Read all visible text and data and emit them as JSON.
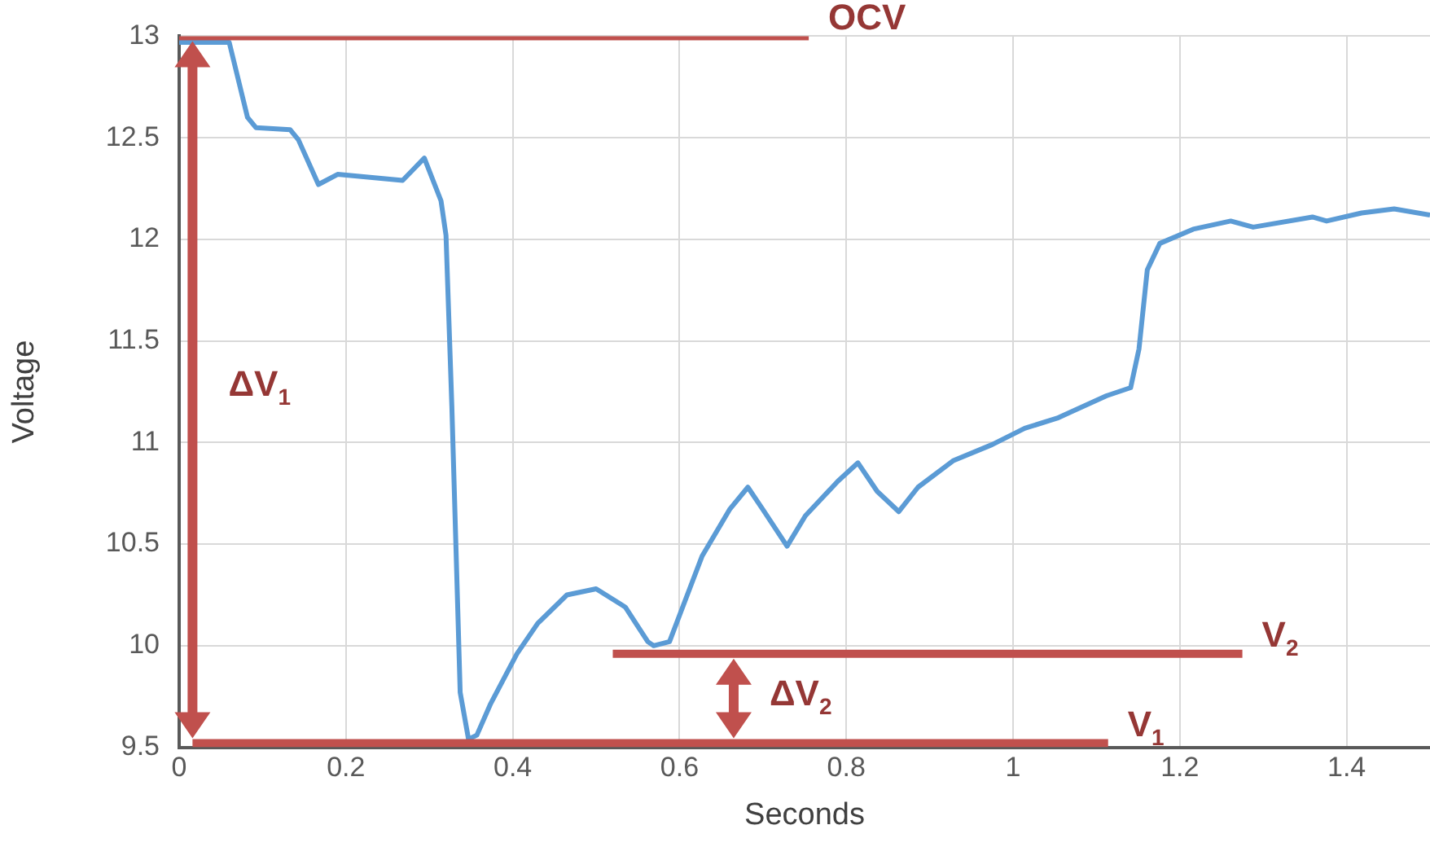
{
  "chart_data": {
    "type": "line",
    "xlabel": "Seconds",
    "ylabel": "Voltage",
    "x": [
      0,
      0.06,
      0.082,
      0.092,
      0.133,
      0.143,
      0.167,
      0.19,
      0.268,
      0.294,
      0.314,
      0.32,
      0.327,
      0.337,
      0.347,
      0.357,
      0.373,
      0.405,
      0.43,
      0.465,
      0.5,
      0.535,
      0.562,
      0.569,
      0.588,
      0.614,
      0.627,
      0.66,
      0.682,
      0.7,
      0.729,
      0.751,
      0.79,
      0.814,
      0.837,
      0.863,
      0.886,
      0.928,
      0.975,
      1.014,
      1.053,
      1.112,
      1.141,
      1.151,
      1.161,
      1.176,
      1.216,
      1.261,
      1.288,
      1.359,
      1.376,
      1.418,
      1.457,
      1.5
    ],
    "series": [
      {
        "color": "#5b9bd5",
        "values": [
          12.97,
          12.97,
          12.6,
          12.55,
          12.54,
          12.49,
          12.27,
          12.32,
          12.29,
          12.4,
          12.19,
          12.02,
          11.18,
          9.77,
          9.54,
          9.56,
          9.71,
          9.96,
          10.11,
          10.25,
          10.28,
          10.19,
          10.02,
          10.0,
          10.02,
          10.3,
          10.44,
          10.67,
          10.78,
          10.67,
          10.49,
          10.64,
          10.81,
          10.9,
          10.76,
          10.66,
          10.78,
          10.91,
          10.99,
          11.07,
          11.12,
          11.23,
          11.27,
          11.46,
          11.85,
          11.98,
          12.05,
          12.09,
          12.06,
          12.11,
          12.09,
          12.13,
          12.15,
          12.12
        ]
      },
      {
        "name": "OCV",
        "color": "#c0504d",
        "x": [
          0,
          0.755
        ],
        "values": [
          13,
          13
        ]
      },
      {
        "name": "V$_{2}$",
        "color": "#c0504d",
        "x": [
          0.52,
          1.275
        ],
        "values": [
          9.96,
          9.96
        ]
      },
      {
        "name": "V$_{1}$",
        "color": "#c0504d",
        "x": [
          0.016,
          1.114
        ],
        "values": [
          9.52,
          9.52
        ]
      }
    ],
    "annotations": [
      "ΔV$_{1}$",
      {
        "text": "ΔV$_{2}$",
        "x": 0.665,
        "y": 9.52
      }
    ],
    "xlim": [
      0,
      1.5
    ],
    "xticks": [
      0,
      0.2,
      0.4,
      0.6,
      0.8,
      1,
      1.2,
      1.4
    ],
    "ylim": [
      9.5,
      13
    ],
    "yticks": [
      9.5,
      10,
      10.5,
      11,
      11.5,
      12,
      12.5,
      13
    ],
    "grid": true,
    "legend": false,
    "marker": "none",
    "line_style": "solid"
  }
}
